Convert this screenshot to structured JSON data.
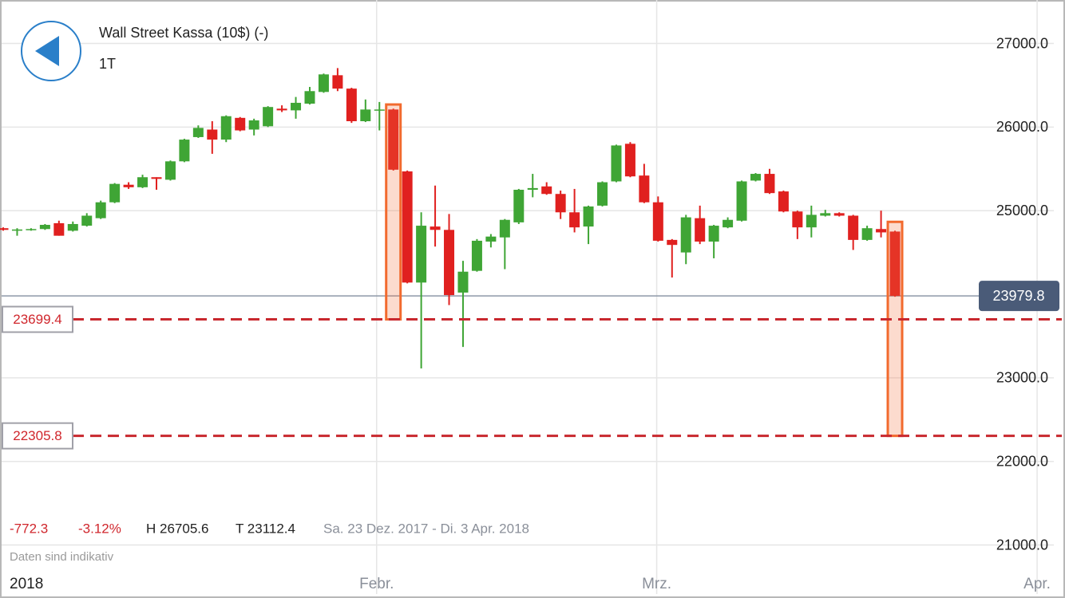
{
  "header": {
    "title": "Wall Street Kassa (10$) (-)",
    "period": "1T"
  },
  "stats": {
    "change": "-772.3",
    "change_pct": "-3.12%",
    "high": "H 26705.6",
    "low": "T 23112.4",
    "range": "Sa. 23 Dez. 2017 - Di. 3 Apr. 2018",
    "note": "Daten sind indikativ"
  },
  "chart_data": {
    "type": "candlestick",
    "year_label": "2018",
    "categories": [
      null,
      null,
      null,
      null,
      null,
      null,
      null,
      null,
      null,
      null,
      null,
      null,
      null,
      null,
      null,
      null,
      null,
      null,
      null,
      null,
      null,
      null,
      null,
      null,
      null,
      null,
      null,
      null,
      null,
      null,
      null,
      null,
      null,
      null,
      null,
      null,
      null,
      null,
      null,
      null,
      null,
      null,
      null,
      null,
      null,
      null,
      null,
      null,
      null,
      null,
      null,
      null,
      null,
      null,
      null,
      null,
      null,
      null,
      null,
      null,
      null,
      null,
      null,
      null,
      null
    ],
    "open": [
      24790,
      24760,
      24770,
      24780,
      24850,
      24760,
      24820,
      24910,
      25100,
      25310,
      25280,
      25400,
      25370,
      25590,
      25880,
      25970,
      25850,
      26110,
      25970,
      26010,
      26220,
      26200,
      26280,
      26420,
      26620,
      26460,
      26070,
      26200,
      26210,
      25470,
      24140,
      24810,
      24770,
      24020,
      24280,
      24630,
      24680,
      24860,
      25250,
      25290,
      25200,
      24980,
      24810,
      25060,
      25350,
      25800,
      25420,
      25100,
      24650,
      24500,
      24910,
      24630,
      24800,
      24880,
      25360,
      25440,
      25230,
      24990,
      24800,
      24940,
      24970,
      24940,
      24650,
      24780,
      24750
    ],
    "high": [
      24800,
      24790,
      24790,
      24840,
      24880,
      24870,
      24970,
      25120,
      25330,
      25340,
      25430,
      25400,
      25600,
      25860,
      26020,
      26070,
      26140,
      26120,
      26100,
      26250,
      26260,
      26360,
      26480,
      26640,
      26705.6,
      26470,
      26330,
      26300,
      26220,
      25480,
      24980,
      25300,
      24960,
      24400,
      24660,
      24720,
      24900,
      25260,
      25440,
      25340,
      25240,
      25260,
      25060,
      25350,
      25790,
      25820,
      25560,
      25170,
      24660,
      24950,
      25060,
      24830,
      24920,
      25360,
      25450,
      25500,
      25240,
      25000,
      25060,
      25010,
      24980,
      24950,
      24820,
      25000,
      24760
    ],
    "low": [
      24760,
      24700,
      24760,
      24770,
      24700,
      24750,
      24810,
      24900,
      25090,
      25260,
      25270,
      25250,
      25360,
      25580,
      25870,
      25680,
      25820,
      25950,
      25900,
      26000,
      26180,
      26100,
      26270,
      26410,
      26430,
      26050,
      26060,
      25960,
      25480,
      24130,
      23112.4,
      24570,
      23870,
      23370,
      24270,
      24560,
      24300,
      24840,
      25160,
      25190,
      24900,
      24740,
      24600,
      25050,
      25340,
      25400,
      25090,
      24630,
      24200,
      24360,
      24600,
      24430,
      24790,
      24870,
      25350,
      25200,
      24980,
      24660,
      24680,
      24930,
      24930,
      24530,
      24640,
      24680,
      23970
    ],
    "close": [
      24770,
      24775,
      24780,
      24830,
      24700,
      24840,
      24940,
      25100,
      25320,
      25280,
      25400,
      25380,
      25590,
      25850,
      25990,
      25850,
      26130,
      25960,
      26080,
      26240,
      26200,
      26290,
      26430,
      26630,
      26460,
      26070,
      26210,
      26210,
      25490,
      24140,
      24820,
      24770,
      23990,
      24270,
      24640,
      24690,
      24890,
      25250,
      25270,
      25200,
      24980,
      24800,
      25050,
      25340,
      25780,
      25410,
      25100,
      24640,
      24590,
      24920,
      24630,
      24820,
      24890,
      25350,
      25440,
      25210,
      24990,
      24800,
      24950,
      24970,
      24940,
      24650,
      24790,
      24740,
      23979.8
    ],
    "up_color": "#3fa535",
    "down_color": "#e0201f",
    "current_price": 23979.8,
    "levels": [
      23699.4,
      22305.8
    ],
    "highlights": [
      {
        "index": 28,
        "from": 26270,
        "to": 23699.4
      },
      {
        "index": 64,
        "from": 24866,
        "to": 22305.8
      }
    ],
    "xlim": [
      -0.23,
      75.4
    ],
    "xticks": [
      {
        "value": 26.8,
        "label": "Febr."
      },
      {
        "value": 46.9,
        "label": "Mrz."
      },
      {
        "value": 74.2,
        "label": "Apr."
      }
    ],
    "ylim": [
      20700,
      27520
    ],
    "yticks": [
      {
        "value": 21000,
        "label": "21000.0"
      },
      {
        "value": 22000,
        "label": "22000.0"
      },
      {
        "value": 23000,
        "label": "23000.0"
      },
      {
        "value": 25000,
        "label": "25000.0"
      },
      {
        "value": 26000,
        "label": "26000.0"
      },
      {
        "value": 27000,
        "label": "27000.0"
      }
    ],
    "grid": true
  }
}
